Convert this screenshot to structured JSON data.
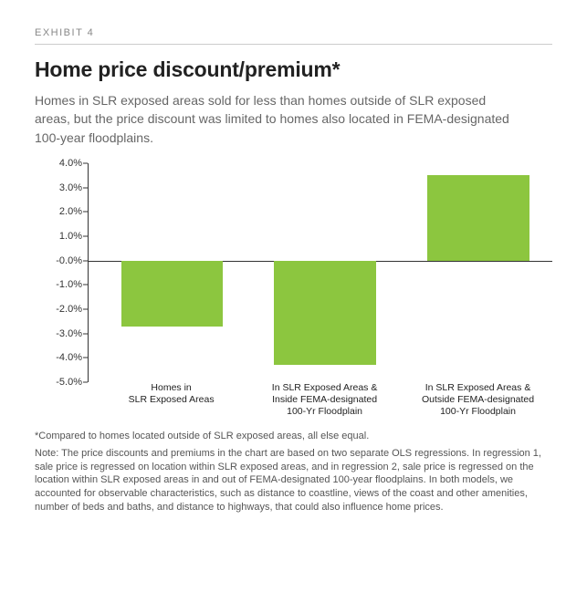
{
  "exhibit_label": "EXHIBIT 4",
  "title": "Home price discount/premium*",
  "subtitle": "Homes in SLR exposed areas sold for less than homes outside of SLR exposed areas, but the price discount was limited to homes also located in FEMA-designated 100-year floodplains.",
  "chart": {
    "type": "bar",
    "ylim_min": -5.0,
    "ylim_max": 4.0,
    "ytick_step": 1.0,
    "ytick_labels": [
      "4.0%",
      "3.0%",
      "2.0%",
      "1.0%",
      "-0.0%",
      "-1.0%",
      "-2.0%",
      "-3.0%",
      "-4.0%",
      "-5.0%"
    ],
    "ytick_values": [
      4.0,
      3.0,
      2.0,
      1.0,
      0.0,
      -1.0,
      -2.0,
      -3.0,
      -4.0,
      -5.0
    ],
    "baseline": 0.0,
    "bar_color": "#8cc63f",
    "axis_color": "#333333",
    "background_color": "#ffffff",
    "bar_width_pct": 22,
    "bars": [
      {
        "label_line1": "Homes in",
        "label_line2": "SLR Exposed Areas",
        "label_line3": "",
        "value": -2.7,
        "center_pct": 18
      },
      {
        "label_line1": "In SLR Exposed Areas &",
        "label_line2": "Inside FEMA-designated",
        "label_line3": "100-Yr Floodplain",
        "value": -4.3,
        "center_pct": 51
      },
      {
        "label_line1": "In SLR Exposed Areas &",
        "label_line2": "Outside FEMA-designated",
        "label_line3": "100-Yr Floodplain",
        "value": 3.5,
        "center_pct": 84
      }
    ]
  },
  "footnote": "*Compared to homes located outside of SLR exposed areas, all else equal.",
  "note": "Note: The price discounts and premiums in the chart are based on two separate OLS regressions. In regression 1, sale price is regressed on location within SLR exposed areas, and in regression 2, sale price is regressed on the location within SLR exposed areas in and out of FEMA-designated 100-year floodplains. In both models, we accounted for observable characteristics, such as distance to coastline, views of the coast and other amenities, number of beds and baths, and distance to highways, that could also influence home prices.",
  "typography": {
    "exhibit_label_fontsize": 11,
    "title_fontsize": 23,
    "subtitle_fontsize": 14,
    "axis_tick_fontsize": 11,
    "x_label_fontsize": 10.5,
    "footnote_fontsize": 11
  },
  "colors": {
    "text_primary": "#222222",
    "text_secondary": "#666666",
    "text_muted": "#888888",
    "rule": "#cccccc",
    "footnote": "#555555"
  }
}
